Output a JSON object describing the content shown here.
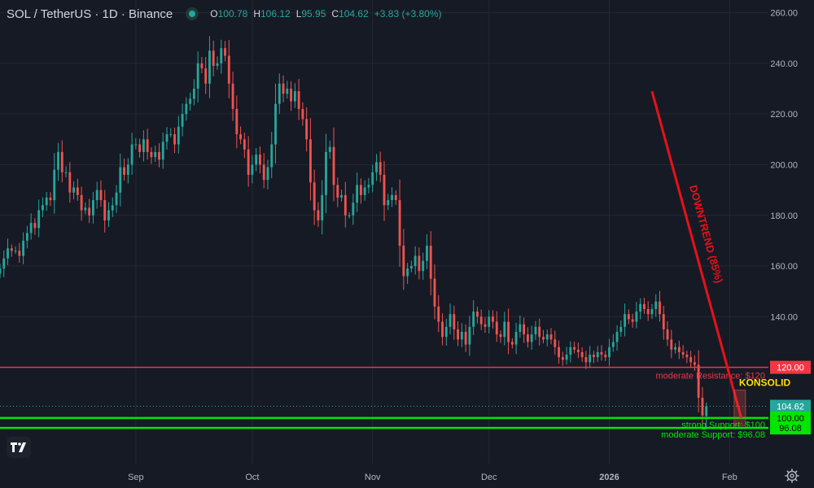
{
  "header": {
    "symbol": "SOL / TetherUS · 1D · Binance",
    "open_label": "O",
    "open": "100.78",
    "high_label": "H",
    "high": "106.12",
    "low_label": "L",
    "low": "95.95",
    "close_label": "C",
    "close": "104.62",
    "change": "+3.83 (+3.80%)"
  },
  "colors": {
    "up": "#26a69a",
    "down": "#ef5350",
    "resistance": "#f23645",
    "support": "#00e600",
    "trend": "#e8101a",
    "background": "#161a25",
    "grid": "#242834",
    "text": "#b2b5be"
  },
  "icons": {
    "logo": "tradingview-logo-icon",
    "settings": "gear-icon",
    "status": "market-status-dot-icon"
  },
  "chart_data": {
    "type": "candlestick",
    "y_axis": {
      "ticks": [
        260,
        240,
        220,
        200,
        180,
        160,
        140
      ],
      "ylim": [
        82,
        265
      ],
      "position": "right"
    },
    "x_axis": {
      "ticks": [
        {
          "label": "Sep",
          "date": "2025-09-01"
        },
        {
          "label": "Oct",
          "date": "2025-10-01"
        },
        {
          "label": "Nov",
          "date": "2025-11-01"
        },
        {
          "label": "Dec",
          "date": "2025-12-01"
        },
        {
          "label": "2026",
          "date": "2026-01-01"
        },
        {
          "label": "Feb",
          "date": "2026-02-01"
        }
      ],
      "xlim": [
        "2025-07-28",
        "2026-02-11"
      ]
    },
    "grid": true,
    "series": [
      {
        "name": "SOL/USDT",
        "start_date": "2025-07-28",
        "close": [
          159,
          163,
          167,
          166,
          166,
          164,
          170,
          173,
          177,
          175,
          182,
          184,
          187,
          186,
          198,
          205,
          197,
          197,
          189,
          191,
          188,
          182,
          183,
          180,
          186,
          190,
          186,
          178,
          182,
          184,
          189,
          199,
          196,
          200,
          208,
          208,
          205,
          210,
          205,
          203,
          205,
          202,
          209,
          212,
          212,
          208,
          215,
          220,
          224,
          226,
          230,
          240,
          238,
          232,
          245,
          239,
          240,
          246,
          243,
          232,
          222,
          212,
          210,
          206,
          196,
          200,
          204,
          200,
          194,
          199,
          208,
          224,
          232,
          228,
          230,
          225,
          229,
          222,
          218,
          210,
          193,
          182,
          178,
          188,
          205,
          207,
          192,
          187,
          188,
          180,
          180,
          185,
          192,
          188,
          191,
          192,
          197,
          201,
          196,
          184,
          186,
          188,
          186,
          168,
          156,
          159,
          160,
          164,
          158,
          162,
          168,
          155,
          144,
          138,
          132,
          136,
          141,
          135,
          131,
          134,
          129,
          136,
          142,
          140,
          137,
          136,
          140,
          138,
          133,
          132,
          138,
          130,
          129,
          134,
          137,
          133,
          130,
          133,
          136,
          132,
          131,
          133,
          131,
          128,
          124,
          123,
          125,
          128,
          127,
          126,
          124,
          122,
          125,
          124,
          126,
          125,
          124,
          128,
          130,
          134,
          136,
          141,
          139,
          138,
          142,
          145,
          143,
          141,
          143,
          146,
          141,
          135,
          131,
          127,
          128,
          126,
          125,
          124,
          122,
          121,
          108,
          101,
          104.62
        ]
      }
    ],
    "price_lines": [
      {
        "label": "moderate Resistance: $120",
        "value": 120,
        "axis_label": "120.00"
      },
      {
        "label": "strong Support: $100",
        "value": 100,
        "axis_label": "100.00"
      },
      {
        "label": "moderate Support: $96.08",
        "value": 96.08,
        "axis_label": "96.08"
      }
    ],
    "last_price": {
      "value": 104.62,
      "label": "104.62"
    },
    "annotations": [
      {
        "text": "DOWNTREND (85%)",
        "from": {
          "date": "2026-01-12",
          "price": 229
        },
        "to": {
          "date": "2026-02-04",
          "price": 100
        }
      },
      {
        "text": "KONSOLID",
        "date": "2026-02-03",
        "price": 114
      }
    ]
  }
}
